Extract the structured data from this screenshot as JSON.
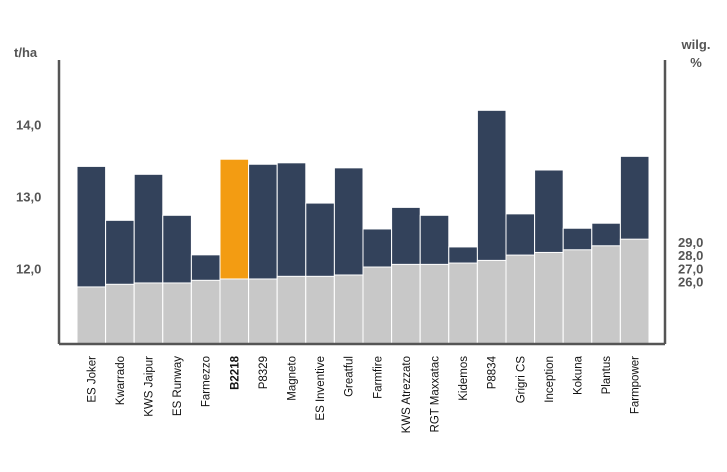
{
  "chart_data": {
    "type": "bar",
    "title": "",
    "ylabel_left": "t/ha",
    "ylabel_right": "wilg. %",
    "ylabel_right_lines": [
      "wilg.",
      "%"
    ],
    "left_axis": {
      "ylim": [
        10.95,
        14.9
      ],
      "ticks": [
        "12,0",
        "13,0",
        "14,0"
      ],
      "tick_values": [
        12.0,
        13.0,
        14.0
      ]
    },
    "right_axis": {
      "ylim": [
        21.3,
        42.7
      ],
      "ticks": [
        "26,0",
        "27,0",
        "28,0",
        "29,0"
      ],
      "tick_values": [
        26.0,
        27.0,
        28.0,
        29.0
      ]
    },
    "grid": false,
    "highlight_category": "B2218",
    "categories": [
      "ES Joker",
      "Kwarrado",
      "KWS Jaipur",
      "ES Runway",
      "Farmezzo",
      "B2218",
      "P8329",
      "Magneto",
      "ES Inventive",
      "Greatful",
      "Farmfire",
      "KWS Atrezzato",
      "RGT Maxxatac",
      "Kidemos",
      "P8834",
      "Grigri CS",
      "Inception",
      "Kokuna",
      "Plantus",
      "Farmpower"
    ],
    "series": [
      {
        "axis": "left",
        "values": [
          13.42,
          12.67,
          13.31,
          12.74,
          12.19,
          13.52,
          13.45,
          13.47,
          12.91,
          13.4,
          12.55,
          12.85,
          12.74,
          12.3,
          14.2,
          12.76,
          13.37,
          12.56,
          12.63,
          13.56
        ]
      },
      {
        "axis": "right",
        "values": [
          25.6,
          25.8,
          25.9,
          25.9,
          26.1,
          26.2,
          26.2,
          26.4,
          26.4,
          26.5,
          27.1,
          27.3,
          27.3,
          27.4,
          27.6,
          28.0,
          28.2,
          28.4,
          28.7,
          29.2
        ]
      }
    ]
  },
  "colors": {
    "yield": "#33425b",
    "highlight": "#f39c12",
    "moisture": "#c8c8c8",
    "axis": "#555555",
    "highlight_text": "#f39c12",
    "text": "#111111"
  }
}
